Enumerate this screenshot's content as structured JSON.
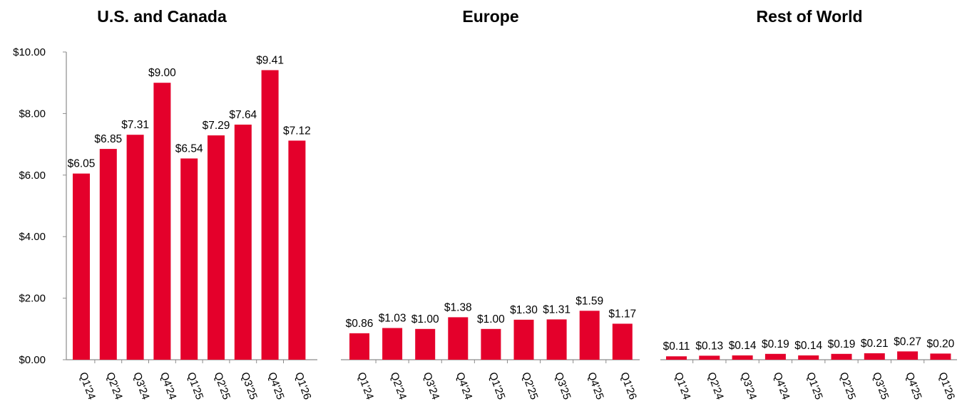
{
  "chart_data": [
    {
      "type": "bar",
      "title": "U.S. and Canada",
      "categories": [
        "Q1'24",
        "Q2'24",
        "Q3'24",
        "Q4'24",
        "Q1'25",
        "Q2'25",
        "Q3'25",
        "Q4'25",
        "Q1'26"
      ],
      "values": [
        6.05,
        6.85,
        7.31,
        9.0,
        6.54,
        7.29,
        7.64,
        9.41,
        7.12
      ],
      "data_labels": [
        "$6.05",
        "$6.85",
        "$7.31",
        "$9.00",
        "$6.54",
        "$7.29",
        "$7.64",
        "$9.41",
        "$7.12"
      ],
      "ylim": [
        0,
        10
      ],
      "yticks": [
        "$0.00",
        "$2.00",
        "$4.00",
        "$6.00",
        "$8.00",
        "$10.00"
      ],
      "grid": false,
      "color": "#E4002B"
    },
    {
      "type": "bar",
      "title": "Europe",
      "categories": [
        "Q1'24",
        "Q2'24",
        "Q3'24",
        "Q4'24",
        "Q1'25",
        "Q2'25",
        "Q3'25",
        "Q4'25",
        "Q1'26"
      ],
      "values": [
        0.86,
        1.03,
        1.0,
        1.38,
        1.0,
        1.3,
        1.31,
        1.59,
        1.17
      ],
      "data_labels": [
        "$0.86",
        "$1.03",
        "$1.00",
        "$1.38",
        "$1.00",
        "$1.30",
        "$1.31",
        "$1.59",
        "$1.17"
      ],
      "ylim": [
        0,
        10
      ],
      "grid": false,
      "color": "#E4002B"
    },
    {
      "type": "bar",
      "title": "Rest of World",
      "categories": [
        "Q1'24",
        "Q2'24",
        "Q3'24",
        "Q4'24",
        "Q1'25",
        "Q2'25",
        "Q3'25",
        "Q4'25",
        "Q1'26"
      ],
      "values": [
        0.11,
        0.13,
        0.14,
        0.19,
        0.14,
        0.19,
        0.21,
        0.27,
        0.2
      ],
      "data_labels": [
        "$0.11",
        "$0.13",
        "$0.14",
        "$0.19",
        "$0.14",
        "$0.19",
        "$0.21",
        "$0.27",
        "$0.20"
      ],
      "ylim": [
        0,
        10
      ],
      "grid": false,
      "color": "#E4002B"
    }
  ]
}
